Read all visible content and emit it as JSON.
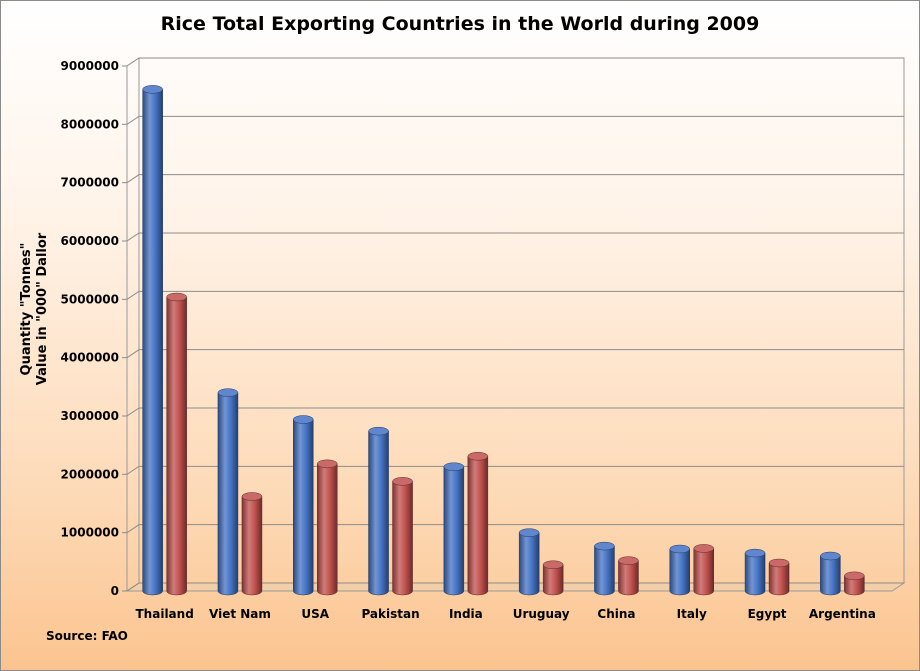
{
  "title": "Rice Total Exporting Countries in the World during 2009",
  "ylabel_line1": "Quantity \"Tonnes\"",
  "ylabel_line2": "Value in \"000\" Dallor",
  "source": "Source: FAO",
  "chart_data": {
    "type": "bar",
    "title": "Rice Total Exporting Countries in the World during 2009",
    "xlabel": "",
    "ylabel": "Quantity \"Tonnes\" / Value in \"000\" Dallor",
    "categories": [
      "Thailand",
      "Viet Nam",
      "USA",
      "Pakistan",
      "India",
      "Uruguay",
      "China",
      "Italy",
      "Egypt",
      "Argentina"
    ],
    "series": [
      {
        "color": "#4472c4",
        "values": [
          8600000,
          3400000,
          2940000,
          2740000,
          2130000,
          1000000,
          770000,
          720000,
          650000,
          600000
        ]
      },
      {
        "color": "#c0504d",
        "values": [
          5040000,
          1620000,
          2180000,
          1880000,
          2310000,
          450000,
          520000,
          730000,
          480000,
          260000
        ]
      }
    ],
    "ylim": [
      0,
      9000000
    ],
    "yticks": [
      "0",
      "1000000",
      "2000000",
      "3000000",
      "4000000",
      "5000000",
      "6000000",
      "7000000",
      "8000000",
      "9000000"
    ],
    "grid": true,
    "legend": "none"
  }
}
